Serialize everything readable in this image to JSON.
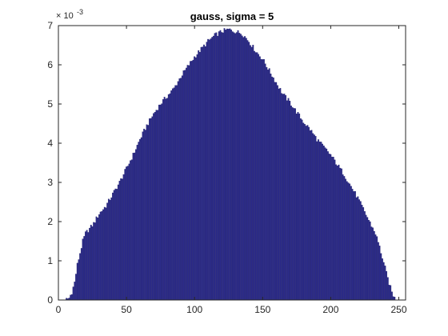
{
  "chart_data": {
    "type": "bar",
    "title": "gauss, sigma = 5",
    "xlabel": "",
    "ylabel": "",
    "xlim": [
      0,
      255
    ],
    "ylim": [
      0,
      7
    ],
    "x_ticks": [
      0,
      50,
      100,
      150,
      200,
      250
    ],
    "y_ticks": [
      0,
      1,
      2,
      3,
      4,
      5,
      6,
      7
    ],
    "y_tick_labels": [
      "0",
      "1",
      "2",
      "3",
      "4",
      "5",
      "6",
      "7"
    ],
    "y_exponent_base": "× 10",
    "y_exponent_power": "-3",
    "grid": false,
    "bar_color": "#2b2a8a",
    "bar_edge_color": "#1c1b66",
    "bins": [
      0,
      255
    ],
    "profile_points": [
      [
        5,
        0.0
      ],
      [
        8,
        0.05
      ],
      [
        10,
        0.2
      ],
      [
        12,
        0.45
      ],
      [
        14,
        0.9
      ],
      [
        16,
        1.2
      ],
      [
        18,
        1.5
      ],
      [
        20,
        1.7
      ],
      [
        23,
        1.82
      ],
      [
        26,
        1.95
      ],
      [
        30,
        2.2
      ],
      [
        35,
        2.4
      ],
      [
        40,
        2.7
      ],
      [
        45,
        3.0
      ],
      [
        50,
        3.35
      ],
      [
        55,
        3.7
      ],
      [
        60,
        4.1
      ],
      [
        65,
        4.45
      ],
      [
        70,
        4.75
      ],
      [
        75,
        5.0
      ],
      [
        80,
        5.2
      ],
      [
        85,
        5.4
      ],
      [
        90,
        5.7
      ],
      [
        95,
        5.95
      ],
      [
        100,
        6.2
      ],
      [
        105,
        6.4
      ],
      [
        110,
        6.6
      ],
      [
        115,
        6.75
      ],
      [
        120,
        6.85
      ],
      [
        125,
        6.9
      ],
      [
        130,
        6.85
      ],
      [
        135,
        6.8
      ],
      [
        140,
        6.6
      ],
      [
        145,
        6.35
      ],
      [
        150,
        6.15
      ],
      [
        155,
        5.85
      ],
      [
        160,
        5.55
      ],
      [
        165,
        5.25
      ],
      [
        170,
        5.05
      ],
      [
        175,
        4.8
      ],
      [
        180,
        4.55
      ],
      [
        185,
        4.35
      ],
      [
        190,
        4.1
      ],
      [
        195,
        3.9
      ],
      [
        200,
        3.7
      ],
      [
        205,
        3.45
      ],
      [
        210,
        3.2
      ],
      [
        215,
        2.9
      ],
      [
        220,
        2.6
      ],
      [
        225,
        2.25
      ],
      [
        230,
        1.9
      ],
      [
        233,
        1.7
      ],
      [
        236,
        1.35
      ],
      [
        239,
        0.95
      ],
      [
        242,
        0.55
      ],
      [
        245,
        0.2
      ],
      [
        247,
        0.05
      ],
      [
        249,
        0.0
      ],
      [
        255,
        0.0
      ]
    ]
  }
}
